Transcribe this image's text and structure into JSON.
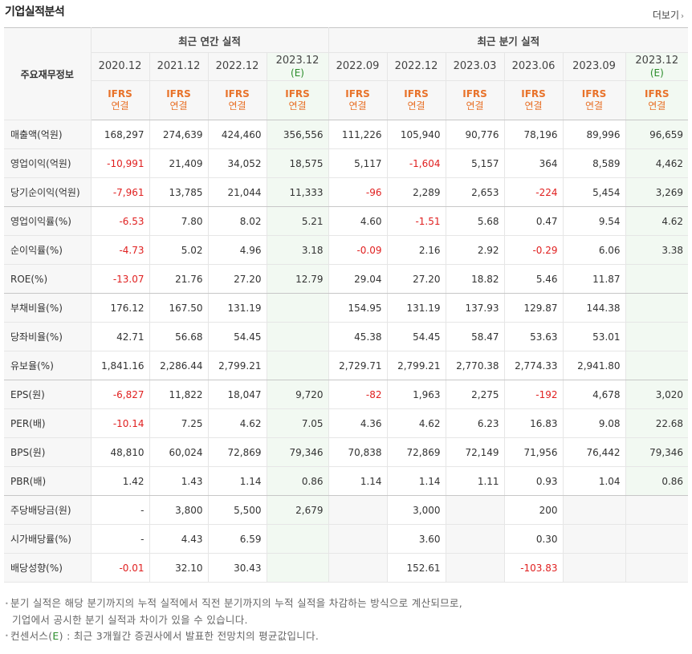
{
  "header": {
    "title": "기업실적분석",
    "more": "더보기",
    "more_arrow": "›"
  },
  "table": {
    "corner": "주요재무정보",
    "group_annual": "최근 연간 실적",
    "group_quarter": "최근 분기 실적",
    "ifrs": "IFRS",
    "consolidated": "연결",
    "est_mark": "(E)",
    "periods": [
      {
        "d": "2020.12",
        "e": false
      },
      {
        "d": "2021.12",
        "e": false
      },
      {
        "d": "2022.12",
        "e": false
      },
      {
        "d": "2023.12",
        "e": true
      },
      {
        "d": "2022.09",
        "e": false
      },
      {
        "d": "2022.12",
        "e": false
      },
      {
        "d": "2023.03",
        "e": false
      },
      {
        "d": "2023.06",
        "e": false
      },
      {
        "d": "2023.09",
        "e": false
      },
      {
        "d": "2023.12",
        "e": true
      }
    ],
    "rows": [
      {
        "label": "매출액(억원)",
        "v": [
          "168,297",
          "274,639",
          "424,460",
          "356,556",
          "111,226",
          "105,940",
          "90,776",
          "78,196",
          "89,996",
          "96,659"
        ]
      },
      {
        "label": "영업이익(억원)",
        "v": [
          "-10,991",
          "21,409",
          "34,052",
          "18,575",
          "5,117",
          "-1,604",
          "5,157",
          "364",
          "8,589",
          "4,462"
        ]
      },
      {
        "label": "당기순이익(억원)",
        "v": [
          "-7,961",
          "13,785",
          "21,044",
          "11,333",
          "-96",
          "2,289",
          "2,653",
          "-224",
          "5,454",
          "3,269"
        ],
        "grp": true
      },
      {
        "label": "영업이익률(%)",
        "v": [
          "-6.53",
          "7.80",
          "8.02",
          "5.21",
          "4.60",
          "-1.51",
          "5.68",
          "0.47",
          "9.54",
          "4.62"
        ]
      },
      {
        "label": "순이익률(%)",
        "v": [
          "-4.73",
          "5.02",
          "4.96",
          "3.18",
          "-0.09",
          "2.16",
          "2.92",
          "-0.29",
          "6.06",
          "3.38"
        ]
      },
      {
        "label": "ROE(%)",
        "v": [
          "-13.07",
          "21.76",
          "27.20",
          "12.79",
          "29.04",
          "27.20",
          "18.82",
          "5.46",
          "11.87",
          ""
        ],
        "grp": true
      },
      {
        "label": "부채비율(%)",
        "v": [
          "176.12",
          "167.50",
          "131.19",
          "",
          "154.95",
          "131.19",
          "137.93",
          "129.87",
          "144.38",
          ""
        ]
      },
      {
        "label": "당좌비율(%)",
        "v": [
          "42.71",
          "56.68",
          "54.45",
          "",
          "45.38",
          "54.45",
          "58.47",
          "53.63",
          "53.01",
          ""
        ]
      },
      {
        "label": "유보율(%)",
        "v": [
          "1,841.16",
          "2,286.44",
          "2,799.21",
          "",
          "2,729.71",
          "2,799.21",
          "2,770.38",
          "2,774.33",
          "2,941.80",
          ""
        ],
        "grp": true
      },
      {
        "label": "EPS(원)",
        "v": [
          "-6,827",
          "11,822",
          "18,047",
          "9,720",
          "-82",
          "1,963",
          "2,275",
          "-192",
          "4,678",
          "3,020"
        ]
      },
      {
        "label": "PER(배)",
        "v": [
          "-10.14",
          "7.25",
          "4.62",
          "7.05",
          "4.36",
          "4.62",
          "6.23",
          "16.83",
          "9.08",
          "22.68"
        ]
      },
      {
        "label": "BPS(원)",
        "v": [
          "48,810",
          "60,024",
          "72,869",
          "79,346",
          "70,838",
          "72,869",
          "72,149",
          "71,956",
          "76,442",
          "79,346"
        ]
      },
      {
        "label": "PBR(배)",
        "v": [
          "1.42",
          "1.43",
          "1.14",
          "0.86",
          "1.14",
          "1.14",
          "1.11",
          "0.93",
          "1.04",
          "0.86"
        ],
        "grp": true
      },
      {
        "label": "주당배당금(원)",
        "v": [
          "-",
          "3,800",
          "5,500",
          "2,679",
          "",
          "3,000",
          "",
          "200",
          "",
          ""
        ],
        "empty": [
          4,
          6,
          8,
          9
        ]
      },
      {
        "label": "시가배당률(%)",
        "v": [
          "-",
          "4.43",
          "6.59",
          "",
          "",
          "3.60",
          "",
          "0.30",
          "",
          ""
        ],
        "empty": [
          4,
          6,
          8,
          9
        ]
      },
      {
        "label": "배당성향(%)",
        "v": [
          "-0.01",
          "32.10",
          "30.43",
          "",
          "",
          "152.61",
          "",
          "-103.83",
          "",
          ""
        ],
        "empty": [
          4,
          6,
          8,
          9
        ]
      }
    ]
  },
  "notes": {
    "line1": "분기 실적은 해당 분기까지의 누적 실적에서 직전 분기까지의 누적 실적을 차감하는 방식으로 계산되므로,",
    "line2": "기업에서 공시한 분기 실적과 차이가 있을 수 있습니다.",
    "line3_pre": "컨센서스(",
    "line3_e": "E",
    "line3_post": ") : 최근 3개월간 증권사에서 발표한 전망치의 평균값입니다.",
    "bullet": "•"
  }
}
